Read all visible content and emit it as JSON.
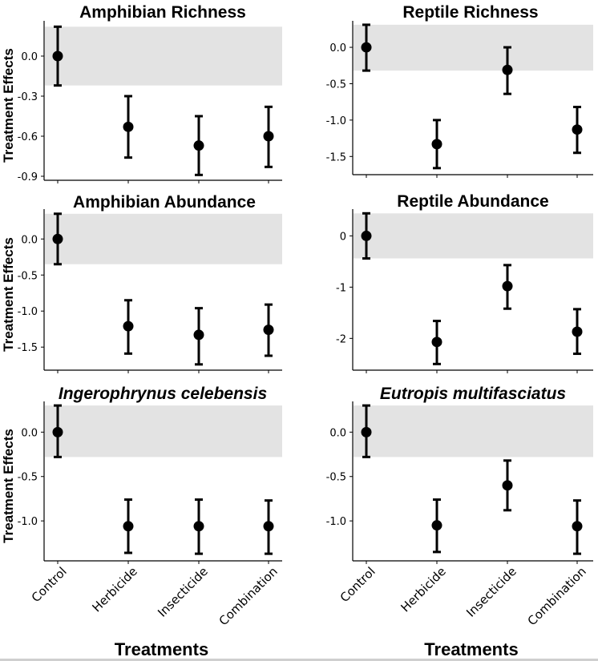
{
  "chart_data": [
    {
      "type": "scatter",
      "title": "Amphibian Richness",
      "title_italic": false,
      "ylabel": "Treatment Effects",
      "xlabel": "",
      "categories": [
        "Control",
        "Herbicide",
        "Insecticide",
        "Combination"
      ],
      "values": [
        0.0,
        -0.53,
        -0.67,
        -0.6
      ],
      "lower": [
        -0.22,
        -0.76,
        -0.89,
        -0.83
      ],
      "upper": [
        0.22,
        -0.3,
        -0.45,
        -0.38
      ],
      "band": [
        -0.22,
        0.22
      ],
      "yticks": [
        0.0,
        -0.3,
        -0.6,
        -0.9
      ],
      "ytick_labels": [
        "0.0",
        "-0.3",
        "-0.6",
        "-0.9"
      ],
      "ylim": [
        -0.93,
        0.24
      ]
    },
    {
      "type": "scatter",
      "title": "Reptile Richness",
      "title_italic": false,
      "ylabel": "",
      "xlabel": "",
      "categories": [
        "Control",
        "Herbicide",
        "Insecticide",
        "Combination"
      ],
      "values": [
        0.0,
        -1.33,
        -0.31,
        -1.13
      ],
      "lower": [
        -0.32,
        -1.66,
        -0.64,
        -1.45
      ],
      "upper": [
        0.31,
        -1.0,
        0.0,
        -0.82
      ],
      "band": [
        -0.32,
        0.31
      ],
      "yticks": [
        0.0,
        -0.5,
        -1.0,
        -1.5
      ],
      "ytick_labels": [
        "0.0",
        "-0.5",
        "-1.0",
        "-1.5"
      ],
      "ylim": [
        -1.75,
        0.32
      ]
    },
    {
      "type": "scatter",
      "title": "Amphibian Abundance",
      "title_italic": false,
      "ylabel": "Treatment Effects",
      "xlabel": "",
      "categories": [
        "Control",
        "Herbicide",
        "Insecticide",
        "Combination"
      ],
      "values": [
        0.0,
        -1.21,
        -1.33,
        -1.26
      ],
      "lower": [
        -0.35,
        -1.59,
        -1.74,
        -1.62
      ],
      "upper": [
        0.35,
        -0.85,
        -0.96,
        -0.91
      ],
      "band": [
        -0.35,
        0.35
      ],
      "yticks": [
        0.0,
        -0.5,
        -1.0,
        -1.5
      ],
      "ytick_labels": [
        "0.0",
        "-0.5",
        "-1.0",
        "-1.5"
      ],
      "ylim": [
        -1.82,
        0.37
      ]
    },
    {
      "type": "scatter",
      "title": "Reptile Abundance",
      "title_italic": false,
      "ylabel": "",
      "xlabel": "",
      "categories": [
        "Control",
        "Herbicide",
        "Insecticide",
        "Combination"
      ],
      "values": [
        0.0,
        -2.07,
        -0.98,
        -1.87
      ],
      "lower": [
        -0.44,
        -2.5,
        -1.42,
        -2.3
      ],
      "upper": [
        0.44,
        -1.66,
        -0.57,
        -1.43
      ],
      "band": [
        -0.44,
        0.44
      ],
      "yticks": [
        0,
        -1,
        -2
      ],
      "ytick_labels": [
        "0",
        "-1",
        "-2"
      ],
      "ylim": [
        -2.62,
        0.46
      ]
    },
    {
      "type": "scatter",
      "title": "Ingerophrynus celebensis",
      "title_italic": true,
      "ylabel": "Treatment Effects",
      "xlabel": "Treatments",
      "categories": [
        "Control",
        "Herbicide",
        "Insecticide",
        "Combination"
      ],
      "values": [
        0.0,
        -1.06,
        -1.06,
        -1.06
      ],
      "lower": [
        -0.28,
        -1.36,
        -1.37,
        -1.37
      ],
      "upper": [
        0.3,
        -0.76,
        -0.76,
        -0.77
      ],
      "band": [
        -0.28,
        0.3
      ],
      "yticks": [
        0.0,
        -0.5,
        -1.0
      ],
      "ytick_labels": [
        "0.0",
        "-0.5",
        "-1.0"
      ],
      "ylim": [
        -1.45,
        0.31
      ]
    },
    {
      "type": "scatter",
      "title": "Eutropis multifasciatus",
      "title_italic": true,
      "ylabel": "",
      "xlabel": "Treatments",
      "categories": [
        "Control",
        "Herbicide",
        "Insecticide",
        "Combination"
      ],
      "values": [
        0.0,
        -1.05,
        -0.6,
        -1.06
      ],
      "lower": [
        -0.28,
        -1.35,
        -0.88,
        -1.37
      ],
      "upper": [
        0.3,
        -0.76,
        -0.32,
        -0.77
      ],
      "band": [
        -0.28,
        0.3
      ],
      "yticks": [
        0.0,
        -0.5,
        -1.0
      ],
      "ytick_labels": [
        "0.0",
        "-0.5",
        "-1.0"
      ],
      "ylim": [
        -1.45,
        0.31
      ]
    }
  ]
}
